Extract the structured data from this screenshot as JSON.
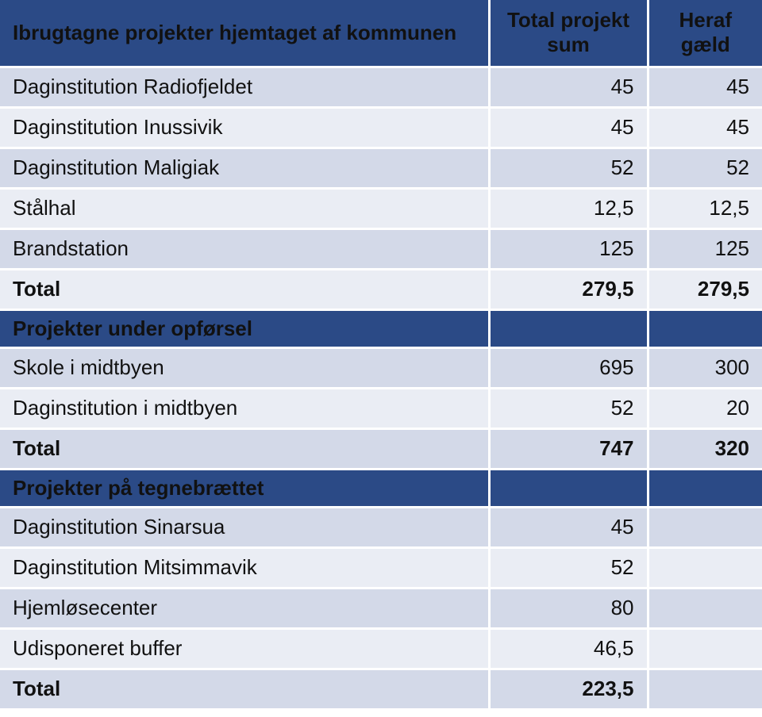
{
  "header": {
    "col1": "Ibrugtagne projekter hjemtaget af kommunen",
    "col2": "Total projekt sum",
    "col3": "Heraf gæld"
  },
  "section1": {
    "rows": [
      {
        "name": "Daginstitution Radiofjeldet",
        "total": "45",
        "debt": "45"
      },
      {
        "name": "Daginstitution Inussivik",
        "total": "45",
        "debt": "45"
      },
      {
        "name": "Daginstitution Maligiak",
        "total": "52",
        "debt": "52"
      },
      {
        "name": "Stålhal",
        "total": "12,5",
        "debt": "12,5"
      },
      {
        "name": "Brandstation",
        "total": "125",
        "debt": "125"
      }
    ],
    "total": {
      "name": "Total",
      "total": "279,5",
      "debt": "279,5"
    }
  },
  "section2": {
    "title": "Projekter under opførsel",
    "rows": [
      {
        "name": "Skole i midtbyen",
        "total": "695",
        "debt": "300"
      },
      {
        "name": "Daginstitution i midtbyen",
        "total": "52",
        "debt": "20"
      }
    ],
    "total": {
      "name": "Total",
      "total": "747",
      "debt": "320"
    }
  },
  "section3": {
    "title": "Projekter på tegnebrættet",
    "rows": [
      {
        "name": "Daginstitution Sinarsua",
        "total": "45",
        "debt": ""
      },
      {
        "name": "Daginstitution Mitsimmavik",
        "total": "52",
        "debt": ""
      },
      {
        "name": "Hjemløsecenter",
        "total": "80",
        "debt": ""
      },
      {
        "name": "Udisponeret buffer",
        "total": "46,5",
        "debt": ""
      }
    ],
    "total": {
      "name": "Total",
      "total": "223,5",
      "debt": ""
    }
  },
  "colors": {
    "header_bg": "#2b4a86",
    "row_dark": "#d3d9e8",
    "row_light": "#eaedf4"
  }
}
